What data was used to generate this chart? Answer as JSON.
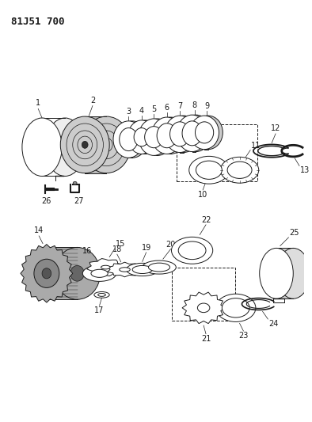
{
  "title": "81J51 700",
  "bg_color": "#ffffff",
  "line_color": "#1a1a1a",
  "title_fontsize": 9,
  "label_fontsize": 7
}
